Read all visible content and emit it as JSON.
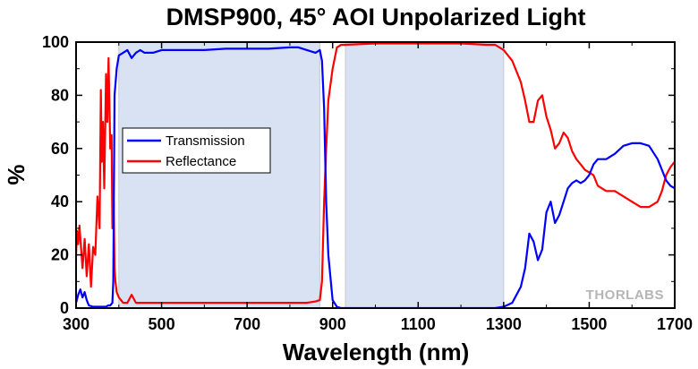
{
  "chart_data": {
    "type": "line",
    "title": "DMSP900, 45° AOI Unpolarized Light",
    "xlabel": "Wavelength (nm)",
    "ylabel": "%",
    "xlim": [
      300,
      1700
    ],
    "ylim": [
      0,
      100
    ],
    "xticks": [
      300,
      500,
      700,
      900,
      1100,
      1300,
      1500,
      1700
    ],
    "yticks": [
      0,
      20,
      40,
      60,
      80,
      100
    ],
    "grid": false,
    "legend_placement": "center-left",
    "shaded_regions": [
      {
        "x": [
          400,
          870
        ],
        "color": "#d9e2f3"
      },
      {
        "x": [
          930,
          1300
        ],
        "color": "#d9e2f3"
      }
    ],
    "series": [
      {
        "name": "Transmission",
        "color": "#0000ff",
        "x": [
          300,
          305,
          310,
          315,
          320,
          325,
          330,
          340,
          350,
          360,
          370,
          375,
          380,
          385,
          387,
          390,
          395,
          400,
          410,
          420,
          430,
          440,
          450,
          460,
          480,
          500,
          550,
          600,
          650,
          700,
          750,
          800,
          820,
          840,
          860,
          870,
          875,
          880,
          885,
          890,
          900,
          910,
          920,
          930,
          1000,
          1100,
          1200,
          1280,
          1300,
          1320,
          1340,
          1350,
          1360,
          1370,
          1380,
          1390,
          1400,
          1410,
          1420,
          1430,
          1440,
          1450,
          1460,
          1470,
          1480,
          1490,
          1500,
          1510,
          1520,
          1540,
          1560,
          1580,
          1600,
          1620,
          1640,
          1660,
          1670,
          1680,
          1690,
          1700
        ],
        "values": [
          2,
          5,
          7,
          4,
          6,
          3,
          1,
          0.5,
          0.5,
          0.5,
          0.5,
          1,
          1,
          2,
          10,
          80,
          90,
          95,
          96,
          97,
          94,
          96,
          97,
          96,
          96,
          97,
          97,
          97,
          97.5,
          97.5,
          97.5,
          98,
          98,
          97,
          96,
          97,
          93,
          75,
          40,
          20,
          3,
          0.5,
          0,
          0,
          0,
          0,
          0,
          0,
          0.5,
          2,
          8,
          15,
          28,
          25,
          18,
          22,
          36,
          40,
          32,
          35,
          40,
          45,
          47,
          48,
          47,
          48,
          50,
          54,
          56,
          56,
          58,
          61,
          62,
          62,
          61,
          56,
          52,
          48,
          46,
          45
        ]
      },
      {
        "name": "Reflectance",
        "color": "#ff0000",
        "x": [
          300,
          302,
          305,
          308,
          312,
          315,
          320,
          325,
          330,
          335,
          340,
          345,
          350,
          355,
          358,
          360,
          363,
          366,
          370,
          373,
          376,
          380,
          383,
          385,
          388,
          390,
          392,
          395,
          400,
          410,
          420,
          430,
          440,
          450,
          460,
          480,
          500,
          550,
          600,
          650,
          700,
          750,
          800,
          840,
          860,
          870,
          875,
          880,
          885,
          890,
          900,
          910,
          920,
          930,
          1000,
          1100,
          1200,
          1260,
          1280,
          1300,
          1320,
          1340,
          1350,
          1360,
          1370,
          1380,
          1390,
          1400,
          1410,
          1420,
          1430,
          1440,
          1450,
          1460,
          1470,
          1480,
          1490,
          1500,
          1510,
          1520,
          1540,
          1560,
          1580,
          1600,
          1620,
          1640,
          1660,
          1670,
          1680,
          1690,
          1700
        ],
        "values": [
          20,
          29,
          24,
          31,
          22,
          15,
          26,
          12,
          24,
          8,
          23,
          20,
          42,
          30,
          82,
          55,
          70,
          45,
          88,
          70,
          94,
          60,
          65,
          30,
          40,
          15,
          10,
          6,
          4,
          2,
          2,
          5,
          2,
          2,
          2,
          2,
          2,
          2,
          2,
          2,
          2,
          2,
          2,
          2,
          2.5,
          3,
          10,
          40,
          60,
          78,
          90,
          98,
          99,
          99,
          99.5,
          99.5,
          99.5,
          99,
          99,
          97,
          93,
          85,
          78,
          70,
          70,
          78,
          80,
          72,
          67,
          60,
          62,
          66,
          64,
          59,
          56,
          54,
          52,
          51,
          50,
          46,
          44,
          44,
          42,
          40,
          38,
          38,
          40,
          44,
          50,
          53,
          55
        ]
      }
    ],
    "watermark": "THORLABS"
  }
}
